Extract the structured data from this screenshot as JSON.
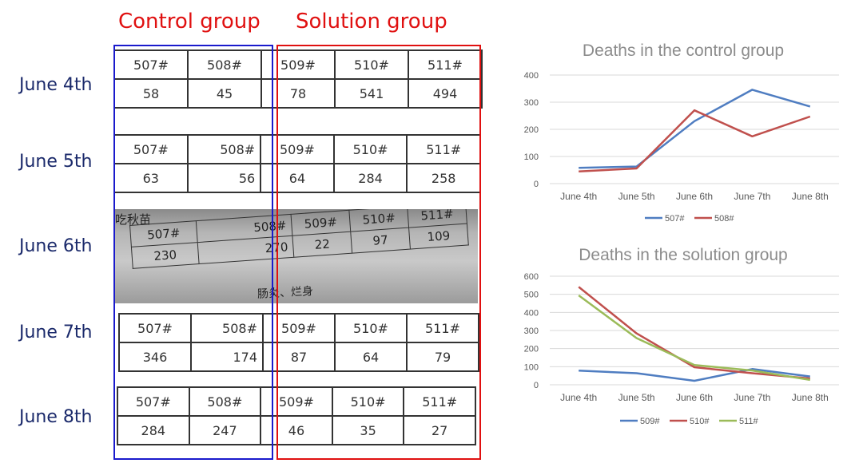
{
  "headers": {
    "control": "Control group",
    "solution": "Solution group"
  },
  "days": [
    "June 4th",
    "June 5th",
    "June 6th",
    "June 7th",
    "June 8th"
  ],
  "tables": [
    {
      "labels": [
        "507#",
        "508#",
        "509#",
        "510#",
        "511#"
      ],
      "values": [
        "58",
        "45",
        "78",
        "541",
        "494"
      ]
    },
    {
      "labels": [
        "507#",
        "508#",
        "509#",
        "510#",
        "511#"
      ],
      "values": [
        "63",
        "56",
        "64",
        "284",
        "258"
      ]
    },
    {
      "title": "吃秋苗",
      "labels": [
        "507#",
        "508#",
        "509#",
        "510#",
        "511#"
      ],
      "values": [
        "230",
        "270",
        "22",
        "97",
        "109"
      ],
      "note": "肠炎、烂身"
    },
    {
      "labels": [
        "507#",
        "508#",
        "509#",
        "510#",
        "511#"
      ],
      "values": [
        "346",
        "174",
        "87",
        "64",
        "79"
      ]
    },
    {
      "labels": [
        "507#",
        "508#",
        "509#",
        "510#",
        "511#"
      ],
      "values": [
        "284",
        "247",
        "46",
        "35",
        "27"
      ]
    }
  ],
  "colors": {
    "control_box": "#1a1acc",
    "solution_box": "#e01010"
  },
  "chart_data": [
    {
      "type": "line",
      "title": "Deaths in the control group",
      "categories": [
        "June 4th",
        "June 5th",
        "June 6th",
        "June 7th",
        "June 8th"
      ],
      "ylim": [
        0,
        400
      ],
      "yticks": [
        0,
        100,
        200,
        300,
        400
      ],
      "grid": true,
      "legend": "bottom",
      "series": [
        {
          "name": "507#",
          "values": [
            58,
            63,
            230,
            346,
            284
          ],
          "color": "#4f7dc1"
        },
        {
          "name": "508#",
          "values": [
            45,
            56,
            270,
            174,
            247
          ],
          "color": "#c0504d"
        }
      ]
    },
    {
      "type": "line",
      "title": "Deaths in the solution group",
      "categories": [
        "June 4th",
        "June 5th",
        "June 6th",
        "June 7th",
        "June 8th"
      ],
      "ylim": [
        0,
        600
      ],
      "yticks": [
        0,
        100,
        200,
        300,
        400,
        500,
        600
      ],
      "grid": true,
      "legend": "bottom",
      "series": [
        {
          "name": "509#",
          "values": [
            78,
            64,
            22,
            87,
            46
          ],
          "color": "#4f7dc1"
        },
        {
          "name": "510#",
          "values": [
            541,
            284,
            97,
            64,
            35
          ],
          "color": "#c0504d"
        },
        {
          "name": "511#",
          "values": [
            494,
            258,
            109,
            79,
            27
          ],
          "color": "#9bbb59"
        }
      ]
    }
  ]
}
